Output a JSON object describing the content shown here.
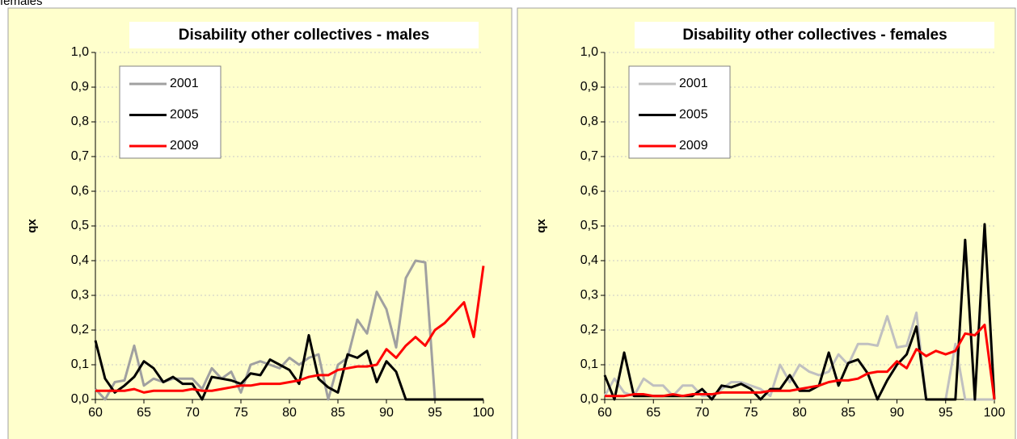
{
  "header": {
    "title": "females"
  },
  "chart_data": [
    {
      "type": "line",
      "title": "Disability other collectives - males",
      "y_label": "qx",
      "x": [
        60,
        61,
        62,
        63,
        64,
        65,
        66,
        67,
        68,
        69,
        70,
        71,
        72,
        73,
        74,
        75,
        76,
        77,
        78,
        79,
        80,
        81,
        82,
        83,
        84,
        85,
        86,
        87,
        88,
        89,
        90,
        91,
        92,
        93,
        94,
        95,
        96,
        97,
        98,
        99,
        100
      ],
      "xlim": [
        60,
        100
      ],
      "xticks": [
        60,
        65,
        70,
        75,
        80,
        85,
        90,
        95,
        100
      ],
      "ylim": [
        0,
        1
      ],
      "yticks": [
        {
          "value": 0,
          "label": "0,0"
        },
        {
          "value": 0.1,
          "label": "0,1"
        },
        {
          "value": 0.2,
          "label": "0,2"
        },
        {
          "value": 0.3,
          "label": "0,3"
        },
        {
          "value": 0.4,
          "label": "0,4"
        },
        {
          "value": 0.5,
          "label": "0,5"
        },
        {
          "value": 0.6,
          "label": "0,6"
        },
        {
          "value": 0.7,
          "label": "0,7"
        },
        {
          "value": 0.8,
          "label": "0,8"
        },
        {
          "value": 0.9,
          "label": "0,9"
        },
        {
          "value": 1,
          "label": "1,0"
        }
      ],
      "grid": true,
      "legend": "top-left",
      "series": [
        {
          "name": "2001",
          "color": "#a0a0a0",
          "values": [
            0.03,
            0,
            0.05,
            0.055,
            0.155,
            0.04,
            0.06,
            0.05,
            0.06,
            0.06,
            0.06,
            0.03,
            0.09,
            0.06,
            0.08,
            0.02,
            0.1,
            0.11,
            0.1,
            0.09,
            0.12,
            0.1,
            0.12,
            0.13,
            0,
            0.1,
            0.12,
            0.23,
            0.19,
            0.31,
            0.26,
            0.15,
            0.35,
            0.4,
            0.395,
            0,
            0,
            0,
            0,
            0,
            0
          ]
        },
        {
          "name": "2005",
          "color": "#000000",
          "values": [
            0.17,
            0.06,
            0.02,
            0.04,
            0.065,
            0.11,
            0.09,
            0.05,
            0.065,
            0.045,
            0.045,
            0,
            0.065,
            0.06,
            0.055,
            0.045,
            0.075,
            0.07,
            0.115,
            0.1,
            0.085,
            0.045,
            0.185,
            0.06,
            0.035,
            0.02,
            0.13,
            0.12,
            0.14,
            0.05,
            0.11,
            0.08,
            0,
            0,
            0,
            0,
            0,
            0,
            0,
            0,
            0
          ]
        },
        {
          "name": "2009",
          "color": "#ff0000",
          "values": [
            0.025,
            0.025,
            0.025,
            0.025,
            0.03,
            0.02,
            0.025,
            0.025,
            0.025,
            0.025,
            0.03,
            0.025,
            0.025,
            0.03,
            0.035,
            0.04,
            0.04,
            0.045,
            0.045,
            0.045,
            0.05,
            0.055,
            0.065,
            0.07,
            0.07,
            0.085,
            0.09,
            0.095,
            0.095,
            0.1,
            0.145,
            0.12,
            0.155,
            0.18,
            0.155,
            0.2,
            0.22,
            0.25,
            0.28,
            0.18,
            0.385
          ]
        }
      ]
    },
    {
      "type": "line",
      "title": "Disability other collectives - females",
      "y_label": "qx",
      "x": [
        60,
        61,
        62,
        63,
        64,
        65,
        66,
        67,
        68,
        69,
        70,
        71,
        72,
        73,
        74,
        75,
        76,
        77,
        78,
        79,
        80,
        81,
        82,
        83,
        84,
        85,
        86,
        87,
        88,
        89,
        90,
        91,
        92,
        93,
        94,
        95,
        96,
        97,
        98,
        99,
        100
      ],
      "xlim": [
        60,
        100
      ],
      "xticks": [
        60,
        65,
        70,
        75,
        80,
        85,
        90,
        95,
        100
      ],
      "ylim": [
        0,
        1
      ],
      "yticks": [
        {
          "value": 0,
          "label": "0,0"
        },
        {
          "value": 0.1,
          "label": "0,1"
        },
        {
          "value": 0.2,
          "label": "0,2"
        },
        {
          "value": 0.3,
          "label": "0,3"
        },
        {
          "value": 0.4,
          "label": "0,4"
        },
        {
          "value": 0.5,
          "label": "0,5"
        },
        {
          "value": 0.6,
          "label": "0,6"
        },
        {
          "value": 0.7,
          "label": "0,7"
        },
        {
          "value": 0.8,
          "label": "0,8"
        },
        {
          "value": 0.9,
          "label": "0,9"
        },
        {
          "value": 1,
          "label": "1,0"
        }
      ],
      "grid": true,
      "legend": "top-left",
      "series": [
        {
          "name": "2001",
          "color": "#c0c0c0",
          "values": [
            0.01,
            0.06,
            0.02,
            0.01,
            0.06,
            0.04,
            0.04,
            0.01,
            0.04,
            0.04,
            0.01,
            0.01,
            0.03,
            0.05,
            0.05,
            0.04,
            0.03,
            0.01,
            0.1,
            0.05,
            0.1,
            0.08,
            0.07,
            0.08,
            0.13,
            0.1,
            0.16,
            0.16,
            0.155,
            0.24,
            0.15,
            0.155,
            0.25,
            0,
            0,
            0,
            0.16,
            0,
            0,
            0,
            0
          ]
        },
        {
          "name": "2005",
          "color": "#000000",
          "values": [
            0.07,
            0,
            0.135,
            0.01,
            0.01,
            0.01,
            0.01,
            0.01,
            0.01,
            0.01,
            0.03,
            0,
            0.04,
            0.035,
            0.045,
            0.03,
            0,
            0.03,
            0.03,
            0.07,
            0.025,
            0.025,
            0.04,
            0.135,
            0.04,
            0.105,
            0.115,
            0.075,
            0,
            0.055,
            0.1,
            0.13,
            0.21,
            0,
            0,
            0,
            0,
            0.46,
            0,
            0.505,
            0
          ]
        },
        {
          "name": "2009",
          "color": "#ff0000",
          "values": [
            0.01,
            0.01,
            0.01,
            0.015,
            0.015,
            0.01,
            0.01,
            0.015,
            0.01,
            0.015,
            0.015,
            0.015,
            0.02,
            0.02,
            0.02,
            0.02,
            0.02,
            0.025,
            0.025,
            0.025,
            0.03,
            0.035,
            0.04,
            0.05,
            0.055,
            0.055,
            0.06,
            0.075,
            0.08,
            0.08,
            0.11,
            0.09,
            0.145,
            0.125,
            0.14,
            0.13,
            0.14,
            0.19,
            0.185,
            0.215,
            0
          ]
        }
      ]
    }
  ]
}
